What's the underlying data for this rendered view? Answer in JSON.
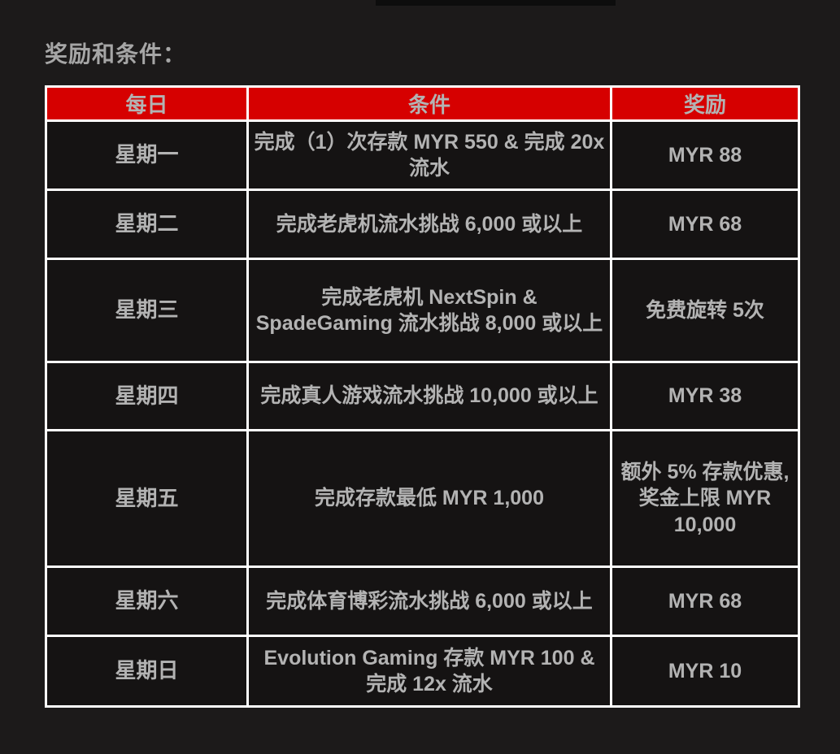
{
  "page": {
    "title": "奖励和条件：",
    "background_color": "#1c1a1a",
    "notch_color": "#0d0d0d"
  },
  "table": {
    "headers": [
      "每日",
      "条件",
      "奖励"
    ],
    "header_bg_color": "#d60000",
    "cell_bg_color": "#151313",
    "border_color": "#ffffff",
    "text_color": "#b3b3b3",
    "rows": [
      {
        "day": "星期一",
        "condition": "完成（1）次存款 MYR 550 & 完成 20x 流水",
        "reward": "MYR 88"
      },
      {
        "day": "星期二",
        "condition": "完成老虎机流水挑战 6,000 或以上",
        "reward": "MYR 68"
      },
      {
        "day": "星期三",
        "condition": "完成老虎机 NextSpin & SpadeGaming 流水挑战 8,000 或以上",
        "reward": "免费旋转 5次"
      },
      {
        "day": "星期四",
        "condition": "完成真人游戏流水挑战 10,000 或以上",
        "reward": "MYR 38"
      },
      {
        "day": "星期五",
        "condition": "完成存款最低 MYR 1,000",
        "reward": "额外 5% 存款优惠, 奖金上限 MYR 10,000"
      },
      {
        "day": "星期六",
        "condition": "完成体育博彩流水挑战 6,000 或以上",
        "reward": "MYR 68"
      },
      {
        "day": "星期日",
        "condition": "Evolution Gaming 存款 MYR 100 & 完成 12x 流水",
        "reward": "MYR 10"
      }
    ]
  }
}
